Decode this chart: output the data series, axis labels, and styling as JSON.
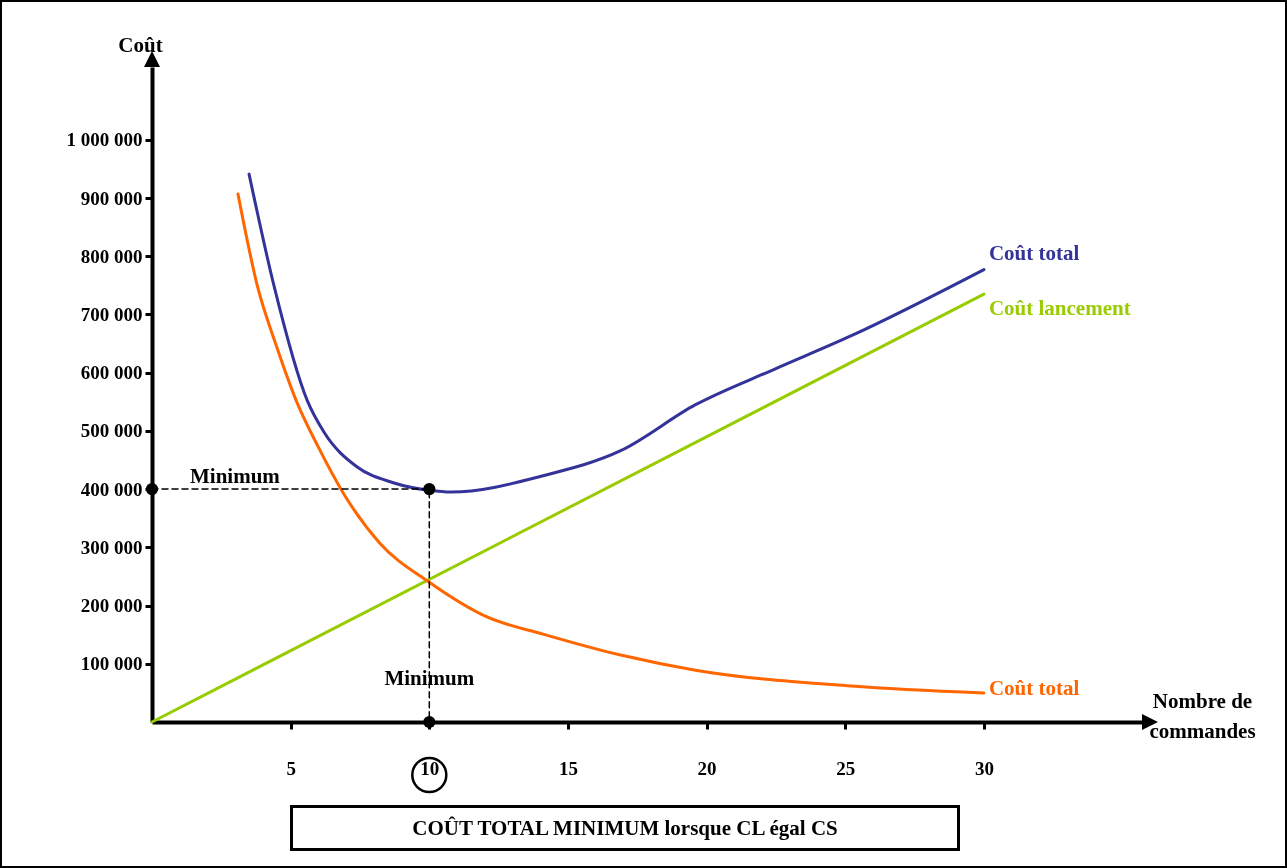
{
  "chart_data": {
    "type": "line",
    "xlabel": "Nombre de commandes",
    "ylabel": "Coût",
    "xlim": [
      0,
      35.7
    ],
    "ylim": [
      0,
      1125000
    ],
    "xticks": [
      5,
      10,
      15,
      20,
      25,
      30
    ],
    "yticks": [
      {
        "value": 100000,
        "label": "100 000"
      },
      {
        "value": 200000,
        "label": "200 000"
      },
      {
        "value": 300000,
        "label": "300 000"
      },
      {
        "value": 400000,
        "label": "400 000"
      },
      {
        "value": 500000,
        "label": "500 000"
      },
      {
        "value": 600000,
        "label": "600 000"
      },
      {
        "value": 700000,
        "label": "700 000"
      },
      {
        "value": 800000,
        "label": "800 000"
      },
      {
        "value": 900000,
        "label": "900 000"
      },
      {
        "value": 1000000,
        "label": "1 000 000"
      }
    ],
    "series": [
      {
        "name": "Coût total",
        "color": "#333399",
        "x": [
          3.5,
          4.4,
          5.6,
          6.2,
          7.4,
          8.7,
          10,
          10.8,
          14.1,
          16.9,
          19.6,
          22.4,
          25.2,
          30
        ],
        "values": [
          941000,
          749000,
          552000,
          498000,
          438000,
          411000,
          398000,
          395000,
          423000,
          466000,
          545000,
          605000,
          663000,
          777000
        ]
      },
      {
        "name": "Coût lancement",
        "color": "#99cc00",
        "x": [
          0,
          30
        ],
        "values": [
          0,
          735000
        ]
      },
      {
        "name": "Coût total",
        "color": "#ff6600",
        "x": [
          3.1,
          3.8,
          4.5,
          5.2,
          6.0,
          6.9,
          8.2,
          10,
          12.1,
          14.1,
          16.9,
          19.6,
          25.2,
          30
        ],
        "values": [
          907000,
          749000,
          644000,
          552000,
          472000,
          393000,
          308000,
          240000,
          180000,
          151000,
          115000,
          89000,
          62000,
          50000
        ]
      },
      {
        "color": "#000000",
        "line_style": "dashed",
        "marker": "circle",
        "x": [
          0,
          10,
          10
        ],
        "values": [
          400000,
          400000,
          0
        ]
      }
    ],
    "annotations": [
      "Minimum",
      {
        "text": "Minimum",
        "x": 10,
        "y": 74000
      },
      "COÛT TOTAL MINIMUM lorsque CL égal CS"
    ]
  }
}
